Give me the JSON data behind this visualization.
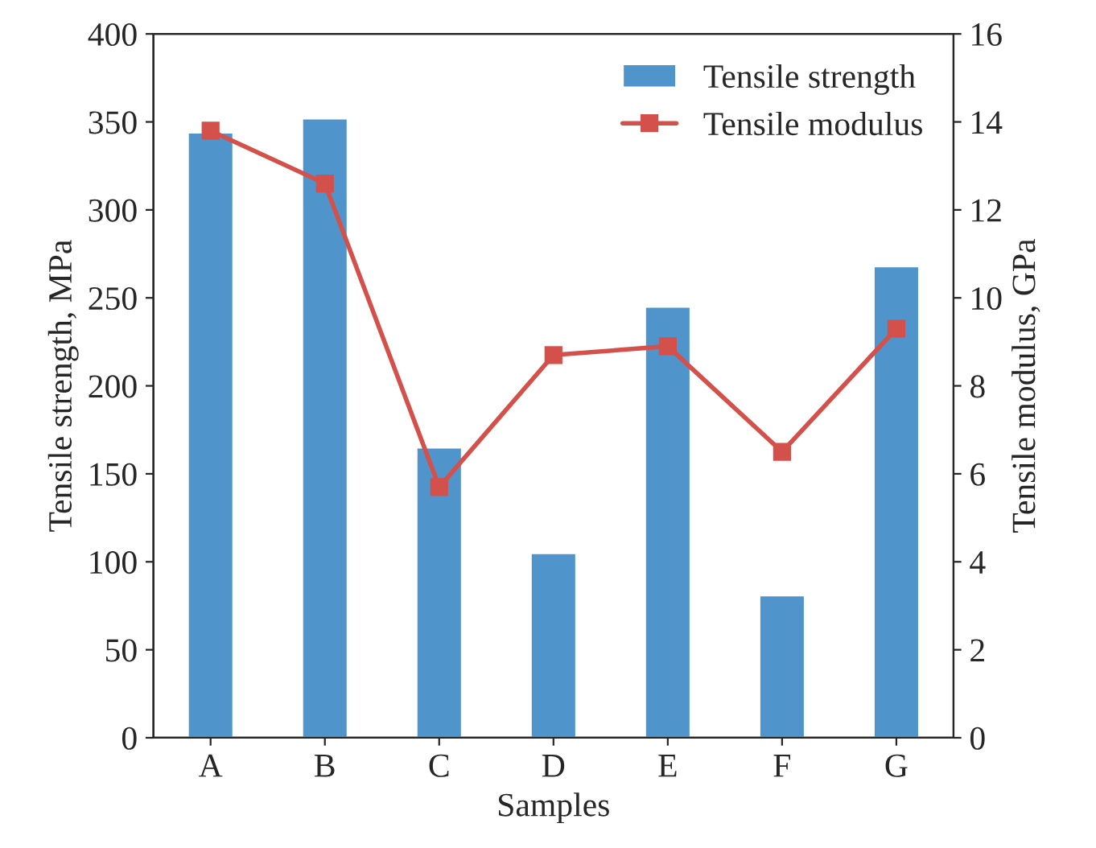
{
  "chart_data": {
    "type": "bar",
    "xlabel": "Samples",
    "ylabel": "Tensile strength, MPa",
    "y2label": "Tensile modulus, GPa",
    "categories": [
      "A",
      "B",
      "C",
      "D",
      "E",
      "F",
      "G"
    ],
    "series": [
      {
        "name": "Tensile strength",
        "color": "#4f95cc",
        "values": [
          344,
          352,
          165,
          105,
          245,
          81,
          268
        ]
      },
      {
        "name": "Tensile modulus",
        "type": "line",
        "axis": "y2",
        "color": "#d4504a",
        "marker": "square",
        "values": [
          13.8,
          12.6,
          5.7,
          8.7,
          8.9,
          6.5,
          9.3
        ]
      }
    ],
    "ylim": [
      0,
      400
    ],
    "yticks": [
      0,
      50,
      100,
      150,
      200,
      250,
      300,
      350,
      400
    ],
    "y2lim": [
      0,
      16
    ],
    "y2ticks": [
      0,
      2,
      4,
      6,
      8,
      10,
      12,
      14,
      16
    ],
    "legend": "top right",
    "grid": false
  }
}
